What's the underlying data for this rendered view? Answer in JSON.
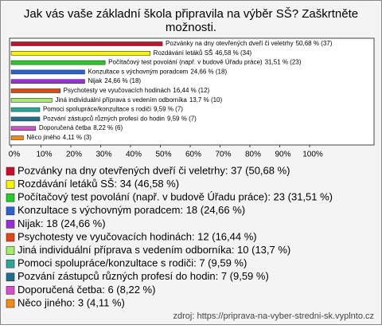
{
  "chart_data": {
    "type": "bar",
    "orientation": "horizontal",
    "title": "Jak vás vaše základní škola připravila na výběr SŠ? Zaškrtněte možnosti.",
    "categories": [
      "Pozvánky na dny otevřených dveří či veletrhy",
      "Rozdávání letáků SŠ",
      "Počítačový test povolání (např. v budově Úřadu práce)",
      "Konzultace s výchovným poradcem",
      "Nijak",
      "Psychotesty ve vyučovacích hodinách",
      "Jiná individuální příprava s vedením odborníka",
      "Pomoci spolupráce/konzultace s rodiči",
      "Pozvání zástupců různých profesí do hodin",
      "Doporučená četba",
      "Něco jiného"
    ],
    "values": [
      50.68,
      46.58,
      31.51,
      24.66,
      24.66,
      16.44,
      13.7,
      9.59,
      9.59,
      8.22,
      4.11
    ],
    "value_labels": [
      "50,68 % (37)",
      "46,58 % (34)",
      "31,51 % (23)",
      "24,66 % (18)",
      "24,66 % (18)",
      "16,44 % (12)",
      "13,7 % (10)",
      "9,59 % (7)",
      "9,59 % (7)",
      "8,22 % (6)",
      "4,11 % (3)"
    ],
    "legend_labels": [
      "Pozvánky na dny otevřených dveří či veletrhy: 37 (50,68 %)",
      "Rozdávání letáků SŠ: 34 (46,58 %)",
      "Počítačový test povolání (např. v budově Úřadu práce): 23 (31,51 %)",
      "Konzultace s výchovným poradcem: 18 (24,66 %)",
      "Nijak: 18 (24,66 %)",
      "Psychotesty ve vyučovacích hodinách: 12 (16,44 %)",
      "Jiná individuální příprava s vedením odborníka: 10 (13,7 %)",
      "Pomoci spolupráce/konzultace s rodiči: 7 (9,59 %)",
      "Pozvání zástupců různých profesí do hodin: 7 (9,59 %)",
      "Doporučená četba: 6 (8,22 %)",
      "Něco jiného: 3 (4,11 %)"
    ],
    "colors": [
      "#c8102e",
      "#f5f500",
      "#2ec82e",
      "#2f62c8",
      "#9b30d0",
      "#e0481a",
      "#a6ec6c",
      "#2aa69a",
      "#1f6e8c",
      "#d050c8",
      "#f08a1a"
    ],
    "xlim": [
      0,
      100
    ],
    "xticks": [
      {
        "value": 0,
        "label": "0%"
      },
      {
        "value": 10,
        "label": "10%"
      },
      {
        "value": 20,
        "label": "20%"
      },
      {
        "value": 30,
        "label": "30%"
      },
      {
        "value": 40,
        "label": "40%"
      },
      {
        "value": 50,
        "label": "50%"
      },
      {
        "value": 60,
        "label": "60%"
      },
      {
        "value": 70,
        "label": "70%"
      },
      {
        "value": 80,
        "label": "80%"
      },
      {
        "value": 90,
        "label": "90%"
      },
      {
        "value": 100,
        "label": "100%"
      }
    ],
    "source": "zdroj: https://priprava-na-vyber-stredni-sk.vyplnto.cz"
  }
}
